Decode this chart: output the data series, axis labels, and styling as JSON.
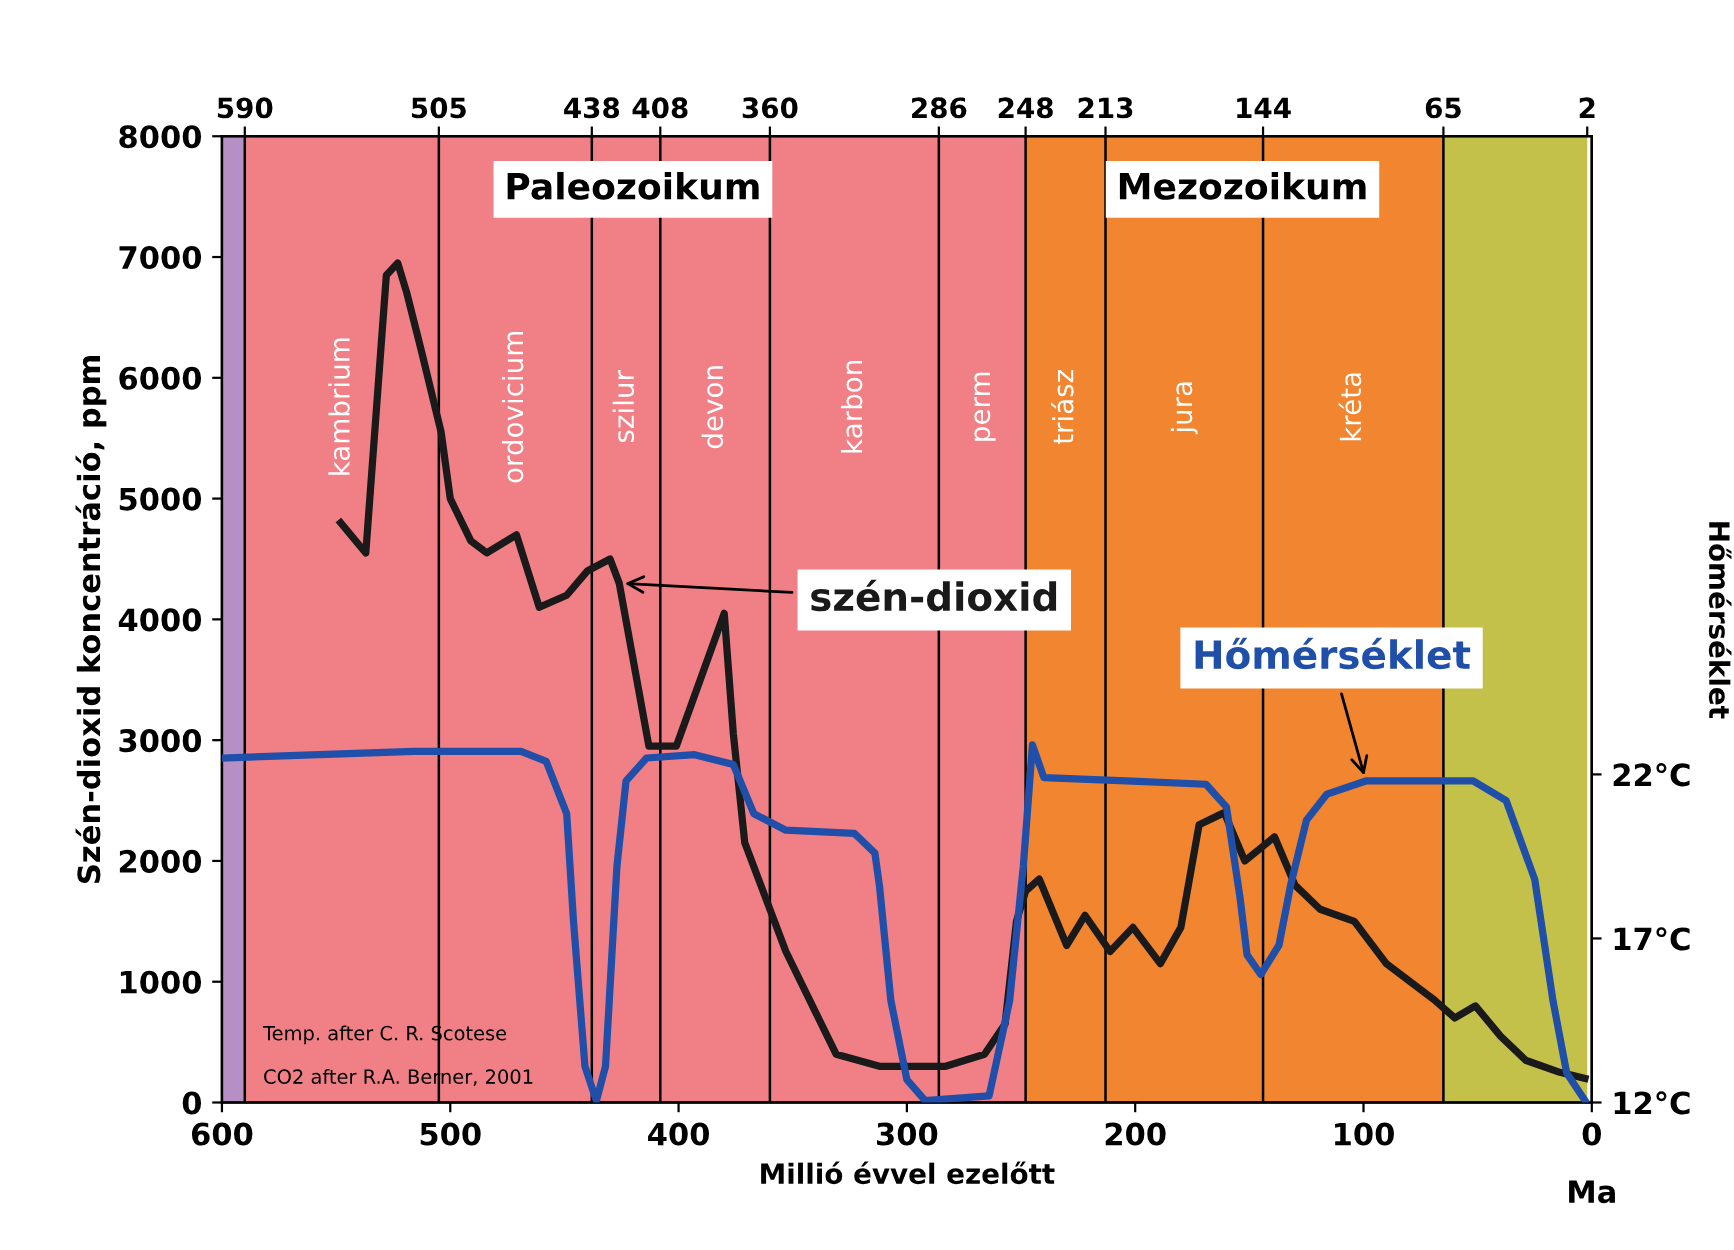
{
  "chart_data": {
    "type": "line",
    "xlabel": "Millió évvel ezelőtt",
    "ylabel": "Szén-dioxid koncentráció, ppm",
    "y2label": "Hőmérséklet",
    "xlim": [
      600,
      0
    ],
    "xticks": [
      600,
      500,
      400,
      300,
      200,
      100,
      0
    ],
    "x2lim": [
      600,
      0
    ],
    "x2ticks": [
      590,
      505,
      438,
      408,
      360,
      286,
      248,
      213,
      144,
      65,
      2
    ],
    "ylim": [
      0,
      8000
    ],
    "yticks": [
      0,
      1000,
      2000,
      3000,
      4000,
      5000,
      6000,
      7000,
      8000
    ],
    "y2lim": [
      12,
      41.45
    ],
    "y2ticks": [
      {
        "value": 12,
        "label": "12°C"
      },
      {
        "value": 17,
        "label": "17°C"
      },
      {
        "value": 22,
        "label": "22°C"
      }
    ],
    "grid": false,
    "legend": false,
    "series": [
      {
        "name": "szén-dioxid",
        "color": "#1a1a1a",
        "x": [
          548,
          537,
          528,
          523,
          519,
          513,
          504,
          500,
          491,
          484,
          471,
          461,
          449,
          440,
          430,
          426,
          413,
          401,
          380,
          376,
          371,
          353,
          331,
          312,
          283,
          266,
          257,
          252,
          248,
          242,
          230,
          222,
          211,
          201,
          189,
          180,
          172,
          161,
          152,
          139,
          130,
          119,
          104,
          90,
          69,
          60,
          51,
          40,
          29,
          14,
          3
        ],
        "values": [
          4800,
          4550,
          6850,
          6950,
          6700,
          6250,
          5550,
          5000,
          4650,
          4550,
          4700,
          4100,
          4200,
          4400,
          4500,
          4300,
          2950,
          2950,
          4050,
          3050,
          2150,
          1250,
          400,
          300,
          300,
          400,
          650,
          1500,
          1750,
          1850,
          1300,
          1550,
          1250,
          1450,
          1150,
          1450,
          2300,
          2400,
          2000,
          2200,
          1800,
          1600,
          1500,
          1150,
          850,
          700,
          800,
          550,
          350,
          250,
          200
        ]
      },
      {
        "name": "Hőmérséklet",
        "color": "#1f4fa8",
        "axis": "y2",
        "x": [
          600,
          516,
          469,
          458,
          449,
          446,
          441,
          436,
          432,
          427,
          423,
          414,
          393,
          376,
          367,
          353,
          323,
          314,
          312,
          307,
          300,
          292,
          264,
          255,
          249,
          245,
          240,
          204,
          169,
          160,
          154,
          151,
          145,
          137,
          132,
          125,
          116,
          99,
          52,
          37.5,
          25,
          17,
          11,
          3
        ],
        "values": [
          22.5,
          22.7,
          22.7,
          22.4,
          20.8,
          17.5,
          13.1,
          12.05,
          13.1,
          19.2,
          21.8,
          22.5,
          22.6,
          22.3,
          20.8,
          20.3,
          20.2,
          19.6,
          18.6,
          15.1,
          12.7,
          12.06,
          12.2,
          15.1,
          19.2,
          22.9,
          21.9,
          21.8,
          21.7,
          21.0,
          18.2,
          16.5,
          15.9,
          16.8,
          18.6,
          20.6,
          21.4,
          21.8,
          21.8,
          21.2,
          18.8,
          15.1,
          12.9,
          12.06
        ]
      }
    ],
    "bands": [
      {
        "axis": "x",
        "from": 600,
        "to": 590,
        "color": "#b68fc4"
      },
      {
        "axis": "x",
        "from": 590,
        "to": 505,
        "color": "#f07f86",
        "label": "kambrium"
      },
      {
        "axis": "x",
        "from": 505,
        "to": 438,
        "color": "#f07f86",
        "label": "ordovicium"
      },
      {
        "axis": "x",
        "from": 438,
        "to": 408,
        "color": "#f07f86",
        "label": "szilur"
      },
      {
        "axis": "x",
        "from": 408,
        "to": 360,
        "color": "#f07f86",
        "label": "devon"
      },
      {
        "axis": "x",
        "from": 360,
        "to": 286,
        "color": "#f07f86",
        "label": "karbon"
      },
      {
        "axis": "x",
        "from": 286,
        "to": 248,
        "color": "#f07f86",
        "label": "perm"
      },
      {
        "axis": "x",
        "from": 248,
        "to": 213,
        "color": "#f18530",
        "label": "triász"
      },
      {
        "axis": "x",
        "from": 213,
        "to": 144,
        "color": "#f18530",
        "label": "jura"
      },
      {
        "axis": "x",
        "from": 144,
        "to": 65,
        "color": "#f18530",
        "label": "kréta"
      },
      {
        "axis": "x",
        "from": 65,
        "to": 2,
        "color": "#c3c14a"
      }
    ],
    "ref_lines": [
      {
        "axis": "x",
        "value": 590,
        "color": "#000000"
      },
      {
        "axis": "x",
        "value": 505,
        "color": "#000000"
      },
      {
        "axis": "x",
        "value": 438,
        "color": "#000000"
      },
      {
        "axis": "x",
        "value": 408,
        "color": "#000000"
      },
      {
        "axis": "x",
        "value": 360,
        "color": "#000000"
      },
      {
        "axis": "x",
        "value": 286,
        "color": "#000000"
      },
      {
        "axis": "x",
        "value": 248,
        "color": "#000000"
      },
      {
        "axis": "x",
        "value": 213,
        "color": "#000000"
      },
      {
        "axis": "x",
        "value": 144,
        "color": "#000000"
      },
      {
        "axis": "x",
        "value": 65,
        "color": "#000000"
      }
    ],
    "annotations": [
      "Temp. after C. R. Scotese",
      "CO2 after R.A. Berner, 2001",
      "Ma",
      "Paleozoikum",
      "Mezozoikum"
    ]
  }
}
